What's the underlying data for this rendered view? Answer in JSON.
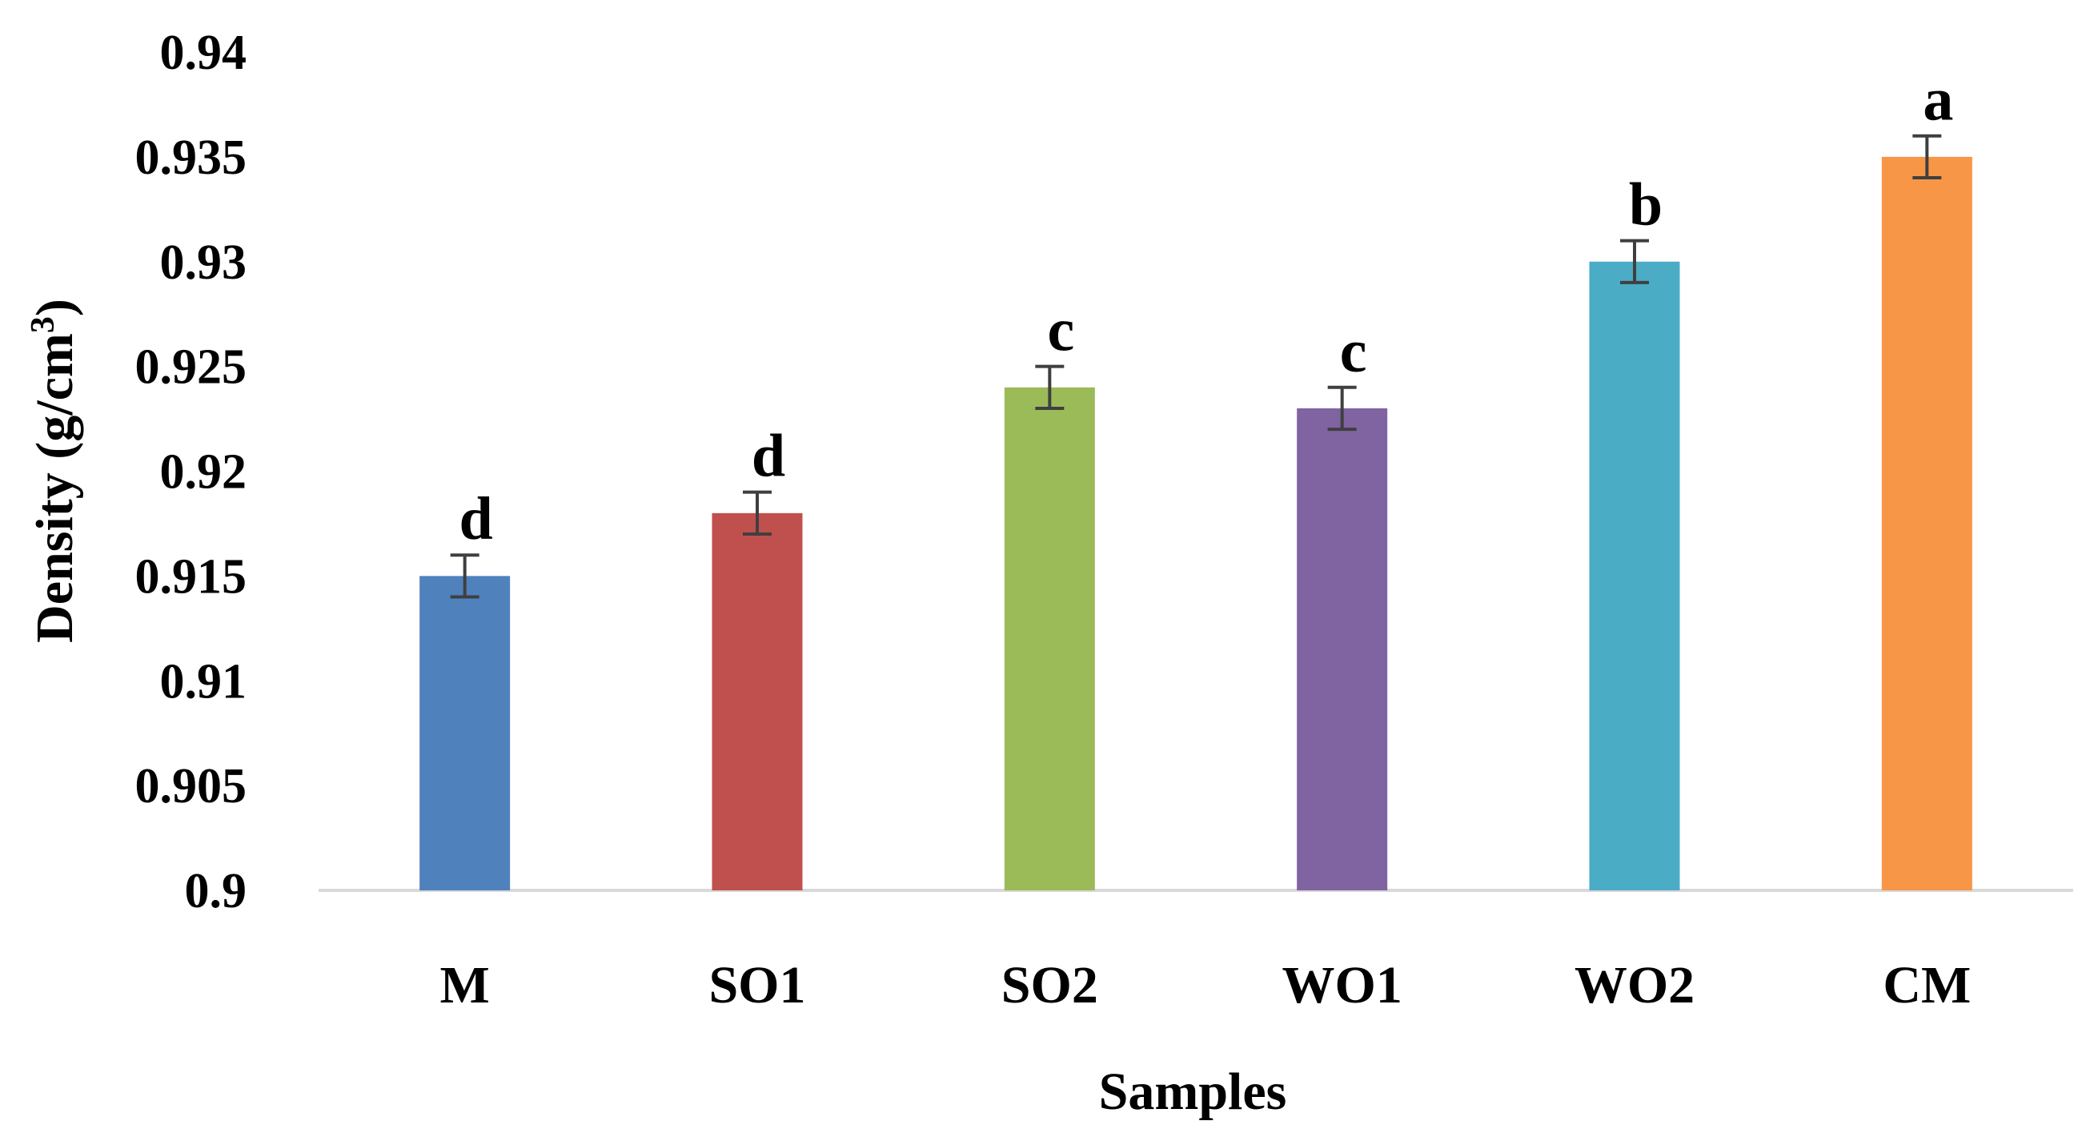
{
  "chart_data": {
    "type": "bar",
    "title": "",
    "xlabel": "Samples",
    "ylabel_main": "Density (g/cm",
    "ylabel_sup": "3",
    "ylabel_close": ")",
    "ylim": [
      0.9,
      0.94
    ],
    "yticks": [
      0.9,
      0.905,
      0.91,
      0.915,
      0.92,
      0.925,
      0.93,
      0.935,
      0.94
    ],
    "ytick_labels": [
      "0.9",
      "0.905",
      "0.91",
      "0.915",
      "0.92",
      "0.925",
      "0.93",
      "0.935",
      "0.94"
    ],
    "grid": false,
    "categories": [
      "M",
      "SO1",
      "SO2",
      "WO1",
      "WO2",
      "CM"
    ],
    "values": [
      0.915,
      0.918,
      0.924,
      0.923,
      0.93,
      0.935
    ],
    "errors": [
      0.001,
      0.001,
      0.001,
      0.001,
      0.001,
      0.001
    ],
    "significance": [
      "d",
      "d",
      "c",
      "c",
      "b",
      "a"
    ],
    "colors": [
      "#4f81bd",
      "#c0504d",
      "#9bbb59",
      "#8064a2",
      "#4bacc6",
      "#f79646"
    ]
  }
}
